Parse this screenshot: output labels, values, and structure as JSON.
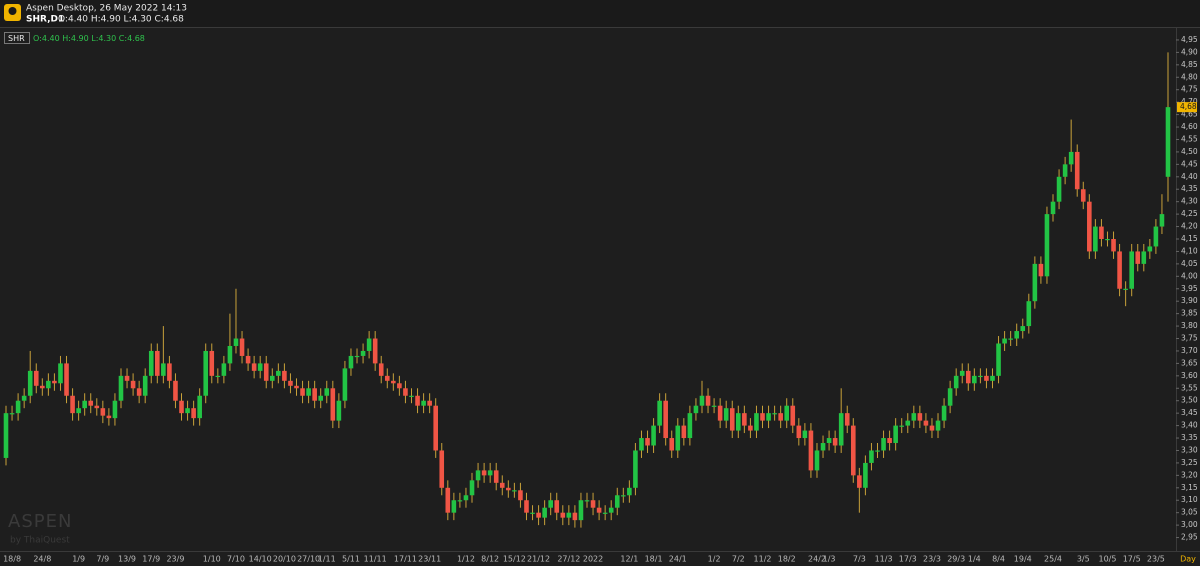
{
  "header": {
    "app_title": "Aspen Desktop, 26 May 2022 14:13",
    "symbol": "SHR,D1",
    "ohlc": "O:4.40 H:4.90 L:4.30 C:4.68"
  },
  "watermark": {
    "brand": "ASPEN",
    "by": "by ThaiQuest"
  },
  "chart_data": {
    "type": "candlestick",
    "symbol": "SHR",
    "legend_ohlc": "O:4.40 H:4.90 L:4.30 C:4.68",
    "timeframe": "Day",
    "up_color": "#22c445",
    "down_color": "#f05545",
    "wick_color": "#c9a23a",
    "categories": [
      null,
      "18/8",
      null,
      null,
      null,
      null,
      "24/8",
      null,
      null,
      null,
      null,
      null,
      "1/9",
      null,
      null,
      null,
      "7/9",
      null,
      null,
      null,
      "13/9",
      null,
      null,
      null,
      "17/9",
      null,
      null,
      null,
      "23/9",
      null,
      null,
      null,
      null,
      null,
      "1/10",
      null,
      null,
      null,
      "7/10",
      null,
      null,
      null,
      "14/10",
      null,
      null,
      null,
      "20/10",
      null,
      null,
      null,
      "27/10",
      null,
      null,
      "1/11",
      null,
      null,
      null,
      "5/11",
      null,
      null,
      null,
      "11/11",
      null,
      null,
      null,
      null,
      "17/11",
      null,
      null,
      null,
      "23/11",
      null,
      null,
      null,
      null,
      null,
      "1/12",
      null,
      null,
      null,
      "8/12",
      null,
      null,
      null,
      "15/12",
      null,
      null,
      null,
      "21/12",
      null,
      null,
      null,
      null,
      "27/12",
      null,
      null,
      null,
      "2022",
      null,
      null,
      null,
      null,
      null,
      "12/1",
      null,
      null,
      null,
      "18/1",
      null,
      null,
      null,
      "24/1",
      null,
      null,
      null,
      null,
      null,
      "1/2",
      null,
      null,
      null,
      "7/2",
      null,
      null,
      null,
      "11/2",
      null,
      null,
      null,
      "18/2",
      null,
      null,
      null,
      null,
      "24/2",
      null,
      "1/3",
      null,
      null,
      null,
      null,
      "7/3",
      null,
      null,
      null,
      "11/3",
      null,
      null,
      null,
      "17/3",
      null,
      null,
      null,
      "23/3",
      null,
      null,
      null,
      "29/3",
      null,
      null,
      "1/4",
      null,
      null,
      null,
      "8/4",
      null,
      null,
      null,
      "19/4",
      null,
      null,
      null,
      null,
      "25/4",
      null,
      null,
      null,
      null,
      "3/5",
      null,
      null,
      null,
      "10/5",
      null,
      null,
      null,
      "17/5",
      null,
      null,
      null,
      "23/5",
      null,
      null
    ],
    "open": [
      3.27,
      3.45,
      3.45,
      3.5,
      3.52,
      3.62,
      3.56,
      3.55,
      3.58,
      3.57,
      3.65,
      3.52,
      3.45,
      3.47,
      3.5,
      3.48,
      3.47,
      3.44,
      3.43,
      3.5,
      3.6,
      3.58,
      3.55,
      3.52,
      3.6,
      3.7,
      3.6,
      3.65,
      3.58,
      3.5,
      3.45,
      3.47,
      3.43,
      3.52,
      3.7,
      3.6,
      3.6,
      3.65,
      3.72,
      3.75,
      3.68,
      3.65,
      3.62,
      3.65,
      3.58,
      3.6,
      3.62,
      3.58,
      3.56,
      3.55,
      3.52,
      3.55,
      3.5,
      3.52,
      3.55,
      3.42,
      3.5,
      3.63,
      3.68,
      3.68,
      3.7,
      3.75,
      3.65,
      3.6,
      3.58,
      3.57,
      3.55,
      3.52,
      3.52,
      3.48,
      3.5,
      3.48,
      3.3,
      3.15,
      3.05,
      3.1,
      3.1,
      3.12,
      3.18,
      3.22,
      3.2,
      3.22,
      3.17,
      3.15,
      3.14,
      3.14,
      3.1,
      3.05,
      3.05,
      3.03,
      3.07,
      3.1,
      3.05,
      3.03,
      3.05,
      3.02,
      3.1,
      3.1,
      3.07,
      3.05,
      3.05,
      3.07,
      3.12,
      3.12,
      3.15,
      3.3,
      3.35,
      3.32,
      3.4,
      3.5,
      3.35,
      3.3,
      3.4,
      3.35,
      3.45,
      3.48,
      3.52,
      3.48,
      3.48,
      3.42,
      3.47,
      3.38,
      3.45,
      3.4,
      3.38,
      3.45,
      3.42,
      3.45,
      3.45,
      3.42,
      3.48,
      3.4,
      3.35,
      3.38,
      3.22,
      3.3,
      3.33,
      3.35,
      3.32,
      3.45,
      3.4,
      3.2,
      3.15,
      3.25,
      3.3,
      3.3,
      3.35,
      3.33,
      3.4,
      3.4,
      3.42,
      3.45,
      3.42,
      3.4,
      3.38,
      3.42,
      3.48,
      3.55,
      3.6,
      3.62,
      3.57,
      3.6,
      3.6,
      3.58,
      3.6,
      3.73,
      3.75,
      3.75,
      3.78,
      3.8,
      3.9,
      4.05,
      4.0,
      4.25,
      4.3,
      4.4,
      4.45,
      4.5,
      4.35,
      4.3,
      4.1,
      4.2,
      4.15,
      4.15,
      4.1,
      3.95,
      3.95,
      4.1,
      4.05,
      4.1,
      4.12,
      4.2,
      4.4
    ],
    "high": [
      3.48,
      3.48,
      3.53,
      3.55,
      3.7,
      3.65,
      3.59,
      3.61,
      3.61,
      3.68,
      3.68,
      3.55,
      3.5,
      3.53,
      3.53,
      3.51,
      3.5,
      3.47,
      3.53,
      3.63,
      3.63,
      3.61,
      3.58,
      3.63,
      3.73,
      3.73,
      3.8,
      3.68,
      3.61,
      3.53,
      3.5,
      3.5,
      3.55,
      3.73,
      3.73,
      3.63,
      3.68,
      3.85,
      3.95,
      3.78,
      3.71,
      3.68,
      3.68,
      3.68,
      3.63,
      3.65,
      3.65,
      3.61,
      3.59,
      3.58,
      3.58,
      3.58,
      3.55,
      3.58,
      3.58,
      3.53,
      3.66,
      3.71,
      3.71,
      3.73,
      3.78,
      3.78,
      3.68,
      3.63,
      3.61,
      3.6,
      3.58,
      3.55,
      3.55,
      3.53,
      3.53,
      3.51,
      3.33,
      3.18,
      3.13,
      3.13,
      3.15,
      3.21,
      3.25,
      3.25,
      3.25,
      3.25,
      3.2,
      3.18,
      3.17,
      3.17,
      3.13,
      3.08,
      3.08,
      3.1,
      3.13,
      3.13,
      3.08,
      3.08,
      3.08,
      3.13,
      3.13,
      3.13,
      3.1,
      3.08,
      3.1,
      3.15,
      3.15,
      3.18,
      3.33,
      3.38,
      3.38,
      3.43,
      3.53,
      3.53,
      3.38,
      3.43,
      3.43,
      3.48,
      3.51,
      3.58,
      3.55,
      3.51,
      3.51,
      3.5,
      3.5,
      3.48,
      3.48,
      3.43,
      3.48,
      3.48,
      3.48,
      3.48,
      3.48,
      3.51,
      3.51,
      3.43,
      3.41,
      3.41,
      3.33,
      3.36,
      3.38,
      3.38,
      3.55,
      3.48,
      3.43,
      3.23,
      3.28,
      3.33,
      3.33,
      3.38,
      3.38,
      3.43,
      3.43,
      3.45,
      3.48,
      3.48,
      3.45,
      3.43,
      3.45,
      3.51,
      3.58,
      3.63,
      3.65,
      3.65,
      3.63,
      3.63,
      3.63,
      3.63,
      3.76,
      3.78,
      3.78,
      3.81,
      3.83,
      3.93,
      4.08,
      4.08,
      4.28,
      4.33,
      4.43,
      4.48,
      4.63,
      4.53,
      4.38,
      4.33,
      4.23,
      4.23,
      4.18,
      4.18,
      4.13,
      3.98,
      4.13,
      4.13,
      4.13,
      4.15,
      4.23,
      4.33,
      4.9
    ],
    "low": [
      3.24,
      3.42,
      3.42,
      3.47,
      3.49,
      3.53,
      3.52,
      3.52,
      3.54,
      3.54,
      3.49,
      3.42,
      3.42,
      3.44,
      3.45,
      3.44,
      3.41,
      3.4,
      3.4,
      3.47,
      3.55,
      3.52,
      3.49,
      3.49,
      3.57,
      3.57,
      3.57,
      3.55,
      3.47,
      3.42,
      3.42,
      3.4,
      3.4,
      3.49,
      3.57,
      3.57,
      3.57,
      3.62,
      3.69,
      3.65,
      3.62,
      3.59,
      3.59,
      3.55,
      3.55,
      3.57,
      3.55,
      3.53,
      3.52,
      3.49,
      3.49,
      3.47,
      3.47,
      3.49,
      3.39,
      3.39,
      3.47,
      3.6,
      3.65,
      3.65,
      3.67,
      3.62,
      3.57,
      3.55,
      3.54,
      3.52,
      3.49,
      3.49,
      3.45,
      3.45,
      3.45,
      3.27,
      3.12,
      3.02,
      3.02,
      3.07,
      3.07,
      3.09,
      3.15,
      3.17,
      3.17,
      3.14,
      3.12,
      3.11,
      3.11,
      3.07,
      3.02,
      3.02,
      3.0,
      3.0,
      3.04,
      3.02,
      3.0,
      3.0,
      2.99,
      2.99,
      3.07,
      3.04,
      3.02,
      3.02,
      3.02,
      3.04,
      3.09,
      3.09,
      3.12,
      3.27,
      3.29,
      3.29,
      3.37,
      3.32,
      3.27,
      3.27,
      3.32,
      3.32,
      3.42,
      3.45,
      3.45,
      3.45,
      3.39,
      3.39,
      3.35,
      3.35,
      3.37,
      3.35,
      3.35,
      3.39,
      3.39,
      3.42,
      3.39,
      3.39,
      3.37,
      3.32,
      3.32,
      3.19,
      3.19,
      3.27,
      3.3,
      3.29,
      3.29,
      3.37,
      3.17,
      3.05,
      3.12,
      3.22,
      3.27,
      3.27,
      3.3,
      3.3,
      3.37,
      3.37,
      3.39,
      3.39,
      3.37,
      3.35,
      3.35,
      3.39,
      3.45,
      3.52,
      3.57,
      3.54,
      3.54,
      3.57,
      3.55,
      3.55,
      3.57,
      3.7,
      3.72,
      3.72,
      3.75,
      3.77,
      3.87,
      3.97,
      3.97,
      4.22,
      4.27,
      4.37,
      4.42,
      4.32,
      4.27,
      4.07,
      4.07,
      4.12,
      4.12,
      4.07,
      3.92,
      3.88,
      3.92,
      4.02,
      4.02,
      4.07,
      4.09,
      4.17,
      4.3
    ],
    "close": [
      3.45,
      3.45,
      3.5,
      3.52,
      3.62,
      3.56,
      3.55,
      3.58,
      3.57,
      3.65,
      3.52,
      3.45,
      3.47,
      3.5,
      3.48,
      3.47,
      3.44,
      3.43,
      3.5,
      3.6,
      3.58,
      3.55,
      3.52,
      3.6,
      3.7,
      3.6,
      3.65,
      3.58,
      3.5,
      3.45,
      3.47,
      3.43,
      3.52,
      3.7,
      3.6,
      3.6,
      3.65,
      3.72,
      3.75,
      3.68,
      3.65,
      3.62,
      3.65,
      3.58,
      3.6,
      3.62,
      3.58,
      3.56,
      3.55,
      3.52,
      3.55,
      3.5,
      3.52,
      3.55,
      3.42,
      3.5,
      3.63,
      3.68,
      3.68,
      3.7,
      3.75,
      3.65,
      3.6,
      3.58,
      3.57,
      3.55,
      3.52,
      3.52,
      3.48,
      3.5,
      3.48,
      3.3,
      3.15,
      3.05,
      3.1,
      3.1,
      3.12,
      3.18,
      3.22,
      3.2,
      3.22,
      3.17,
      3.15,
      3.14,
      3.14,
      3.1,
      3.05,
      3.05,
      3.03,
      3.07,
      3.1,
      3.05,
      3.03,
      3.05,
      3.02,
      3.1,
      3.1,
      3.07,
      3.05,
      3.05,
      3.07,
      3.12,
      3.12,
      3.15,
      3.3,
      3.35,
      3.32,
      3.4,
      3.5,
      3.35,
      3.3,
      3.4,
      3.35,
      3.45,
      3.48,
      3.52,
      3.48,
      3.48,
      3.42,
      3.47,
      3.38,
      3.45,
      3.4,
      3.38,
      3.45,
      3.42,
      3.45,
      3.45,
      3.42,
      3.48,
      3.4,
      3.35,
      3.38,
      3.22,
      3.3,
      3.33,
      3.35,
      3.32,
      3.45,
      3.4,
      3.2,
      3.15,
      3.25,
      3.3,
      3.3,
      3.35,
      3.33,
      3.4,
      3.4,
      3.42,
      3.45,
      3.42,
      3.4,
      3.38,
      3.42,
      3.48,
      3.55,
      3.6,
      3.62,
      3.57,
      3.6,
      3.6,
      3.58,
      3.6,
      3.73,
      3.75,
      3.75,
      3.78,
      3.8,
      3.9,
      4.05,
      4.0,
      4.25,
      4.3,
      4.4,
      4.45,
      4.5,
      4.35,
      4.3,
      4.1,
      4.2,
      4.15,
      4.15,
      4.1,
      3.95,
      3.95,
      4.1,
      4.05,
      4.1,
      4.12,
      4.2,
      4.25,
      4.68
    ],
    "ylim": [
      2.9,
      4.99
    ],
    "yticks": [
      {
        "value": 2.95,
        "label": "2,95"
      },
      {
        "value": 3.0,
        "label": "3,00"
      },
      {
        "value": 3.05,
        "label": "3,05"
      },
      {
        "value": 3.1,
        "label": "3,10"
      },
      {
        "value": 3.15,
        "label": "3,15"
      },
      {
        "value": 3.2,
        "label": "3,20"
      },
      {
        "value": 3.25,
        "label": "3,25"
      },
      {
        "value": 3.3,
        "label": "3,30"
      },
      {
        "value": 3.35,
        "label": "3,35"
      },
      {
        "value": 3.4,
        "label": "3,40"
      },
      {
        "value": 3.45,
        "label": "3,45"
      },
      {
        "value": 3.5,
        "label": "3,50"
      },
      {
        "value": 3.55,
        "label": "3,55"
      },
      {
        "value": 3.6,
        "label": "3,60"
      },
      {
        "value": 3.65,
        "label": "3,65"
      },
      {
        "value": 3.7,
        "label": "3,70"
      },
      {
        "value": 3.75,
        "label": "3,75"
      },
      {
        "value": 3.8,
        "label": "3,80"
      },
      {
        "value": 3.85,
        "label": "3,85"
      },
      {
        "value": 3.9,
        "label": "3,90"
      },
      {
        "value": 3.95,
        "label": "3,95"
      },
      {
        "value": 4.0,
        "label": "4,00"
      },
      {
        "value": 4.05,
        "label": "4,05"
      },
      {
        "value": 4.1,
        "label": "4,10"
      },
      {
        "value": 4.15,
        "label": "4,15"
      },
      {
        "value": 4.2,
        "label": "4,20"
      },
      {
        "value": 4.25,
        "label": "4,25"
      },
      {
        "value": 4.3,
        "label": "4,30"
      },
      {
        "value": 4.35,
        "label": "4,35"
      },
      {
        "value": 4.4,
        "label": "4,40"
      },
      {
        "value": 4.45,
        "label": "4,45"
      },
      {
        "value": 4.5,
        "label": "4,50"
      },
      {
        "value": 4.55,
        "label": "4,55"
      },
      {
        "value": 4.6,
        "label": "4,60"
      },
      {
        "value": 4.65,
        "label": "4,65"
      },
      {
        "value": 4.7,
        "label": "4,70"
      },
      {
        "value": 4.75,
        "label": "4,75"
      },
      {
        "value": 4.8,
        "label": "4,80"
      },
      {
        "value": 4.85,
        "label": "4,85"
      },
      {
        "value": 4.9,
        "label": "4,90"
      },
      {
        "value": 4.95,
        "label": "4,95"
      }
    ],
    "last_price": {
      "value": 4.68,
      "label": "4,68"
    }
  }
}
